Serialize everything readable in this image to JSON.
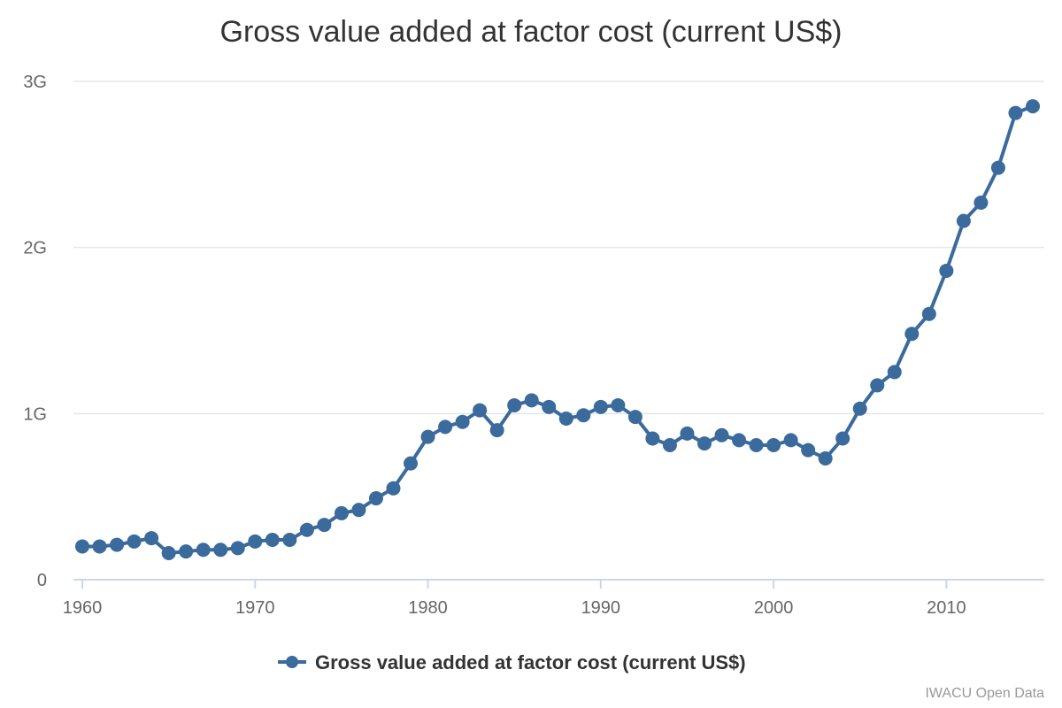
{
  "chart_data": {
    "type": "line",
    "title": "Gross value added at factor cost (current US$)",
    "xlabel": "",
    "ylabel": "",
    "x": [
      1960,
      1961,
      1962,
      1963,
      1964,
      1965,
      1966,
      1967,
      1968,
      1969,
      1970,
      1971,
      1972,
      1973,
      1974,
      1975,
      1976,
      1977,
      1978,
      1979,
      1980,
      1981,
      1982,
      1983,
      1984,
      1985,
      1986,
      1987,
      1988,
      1989,
      1990,
      1991,
      1992,
      1993,
      1994,
      1995,
      1996,
      1997,
      1998,
      1999,
      2000,
      2001,
      2002,
      2003,
      2004,
      2005,
      2006,
      2007,
      2008,
      2009,
      2010,
      2011,
      2012,
      2013,
      2014,
      2015
    ],
    "series": [
      {
        "name": "Gross value added at factor cost (current US$)",
        "color": "#3a6b9c",
        "values": [
          0.2,
          0.2,
          0.21,
          0.23,
          0.25,
          0.16,
          0.17,
          0.18,
          0.18,
          0.19,
          0.23,
          0.24,
          0.24,
          0.3,
          0.33,
          0.4,
          0.42,
          0.49,
          0.55,
          0.7,
          0.86,
          0.92,
          0.95,
          1.02,
          0.9,
          1.05,
          1.08,
          1.04,
          0.97,
          0.99,
          1.04,
          1.05,
          0.98,
          0.85,
          0.81,
          0.88,
          0.82,
          0.87,
          0.84,
          0.81,
          0.81,
          0.84,
          0.78,
          0.73,
          0.85,
          1.03,
          1.17,
          1.25,
          1.48,
          1.6,
          1.86,
          2.16,
          2.27,
          2.48,
          2.81,
          2.85
        ]
      }
    ],
    "value_unit": "G",
    "xlim": [
      1960,
      2015
    ],
    "ylim": [
      0,
      3
    ],
    "x_ticks": [
      "1960",
      "1970",
      "1980",
      "1990",
      "2000",
      "2010"
    ],
    "y_ticks": [
      "0",
      "1G",
      "2G",
      "3G"
    ],
    "grid": "horizontal",
    "legend_position": "bottom-center",
    "credit": "IWACU Open Data"
  }
}
